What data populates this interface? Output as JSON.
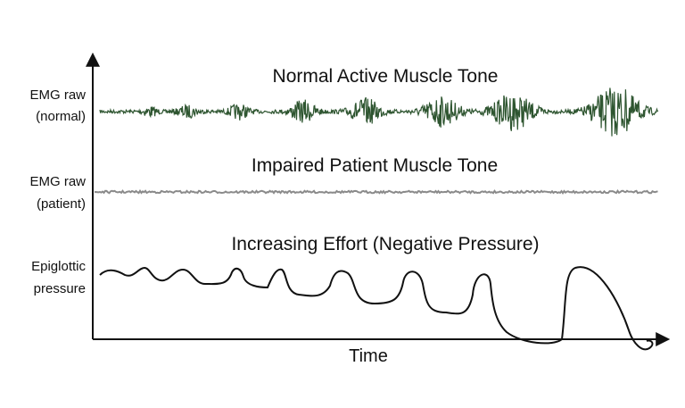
{
  "rows": [
    {
      "label_lines": [
        "EMG raw",
        "(normal)"
      ],
      "caption": "Normal Active Muscle Tone"
    },
    {
      "label_lines": [
        "EMG raw",
        "(patient)"
      ],
      "caption": "Impaired Patient Muscle Tone"
    },
    {
      "label_lines": [
        "Epiglottic",
        "pressure"
      ],
      "caption": "Increasing Effort (Negative Pressure)"
    }
  ],
  "x_axis_label": "Time"
}
